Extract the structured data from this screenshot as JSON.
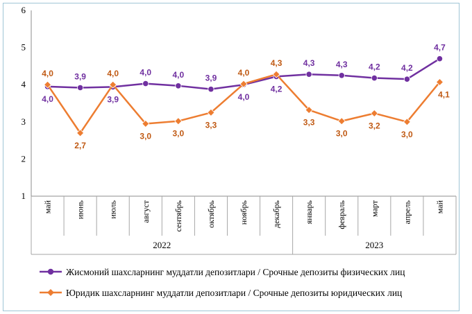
{
  "chart_data": {
    "type": "line",
    "title": "",
    "xlabel": "",
    "ylabel": "",
    "ylim": [
      1,
      6
    ],
    "yticks": [
      "1",
      "2",
      "3",
      "4",
      "5",
      "6"
    ],
    "grid": false,
    "categories": [
      "май",
      "июнь",
      "июль",
      "август",
      "сентябрь",
      "октябрь",
      "ноябрь",
      "декабрь",
      "январь",
      "февраль",
      "март",
      "апрель",
      "май"
    ],
    "year_groups": [
      {
        "label": "2022",
        "count": 8
      },
      {
        "label": "2023",
        "count": 5
      }
    ],
    "series": [
      {
        "name": "Жисмоний шахсларнинг муддатли депозитлари / Срочные депозиты физических лиц",
        "color": "#7030a0",
        "marker": "circle",
        "values": [
          3.95,
          3.92,
          3.94,
          4.03,
          3.97,
          3.88,
          4.0,
          4.22,
          4.28,
          4.25,
          4.18,
          4.15,
          4.7
        ],
        "labels": [
          "4,0",
          "3,9",
          "3,9",
          "4,0",
          "4,0",
          "3,9",
          "4,0",
          "4,2",
          "4,3",
          "4,3",
          "4,2",
          "4,2",
          "4,7"
        ]
      },
      {
        "name": "Юридик шахсларнинг муддатли депозитлари / Срочные депозиты юридических лиц",
        "color": "#ed7d31",
        "marker": "diamond",
        "values": [
          4.0,
          2.7,
          4.0,
          2.95,
          3.02,
          3.25,
          4.02,
          4.28,
          3.32,
          3.02,
          3.23,
          3.0,
          4.07
        ],
        "labels": [
          "4,0",
          "2,7",
          "4,0",
          "3,0",
          "3,0",
          "3,3",
          "4,0",
          "4,3",
          "3,3",
          "3,0",
          "3,2",
          "3,0",
          "4,1"
        ]
      }
    ],
    "legend_position": "bottom"
  }
}
